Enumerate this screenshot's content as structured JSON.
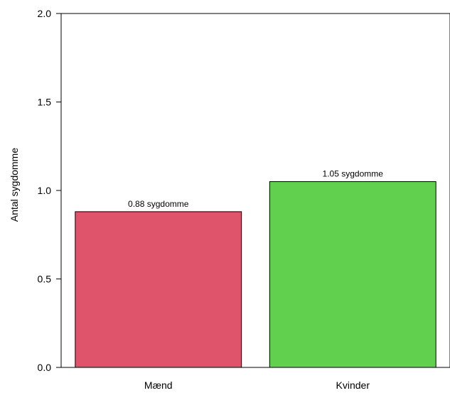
{
  "chart_data": {
    "type": "bar",
    "categories": [
      "Mænd",
      "Kvinder"
    ],
    "values": [
      0.88,
      1.05
    ],
    "data_labels": [
      "0.88 sygdomme",
      "1.05 sygdomme"
    ],
    "bar_colors": [
      "#df536b",
      "#61d04f"
    ],
    "ylabel": "Antal sygdomme",
    "ylim": [
      0,
      2
    ],
    "yticks": [
      0,
      0.5,
      1,
      1.5,
      2
    ],
    "ytick_labels": [
      "0.0",
      "0.5",
      "1.0",
      "1.5",
      "2.0"
    ],
    "grid": false
  }
}
